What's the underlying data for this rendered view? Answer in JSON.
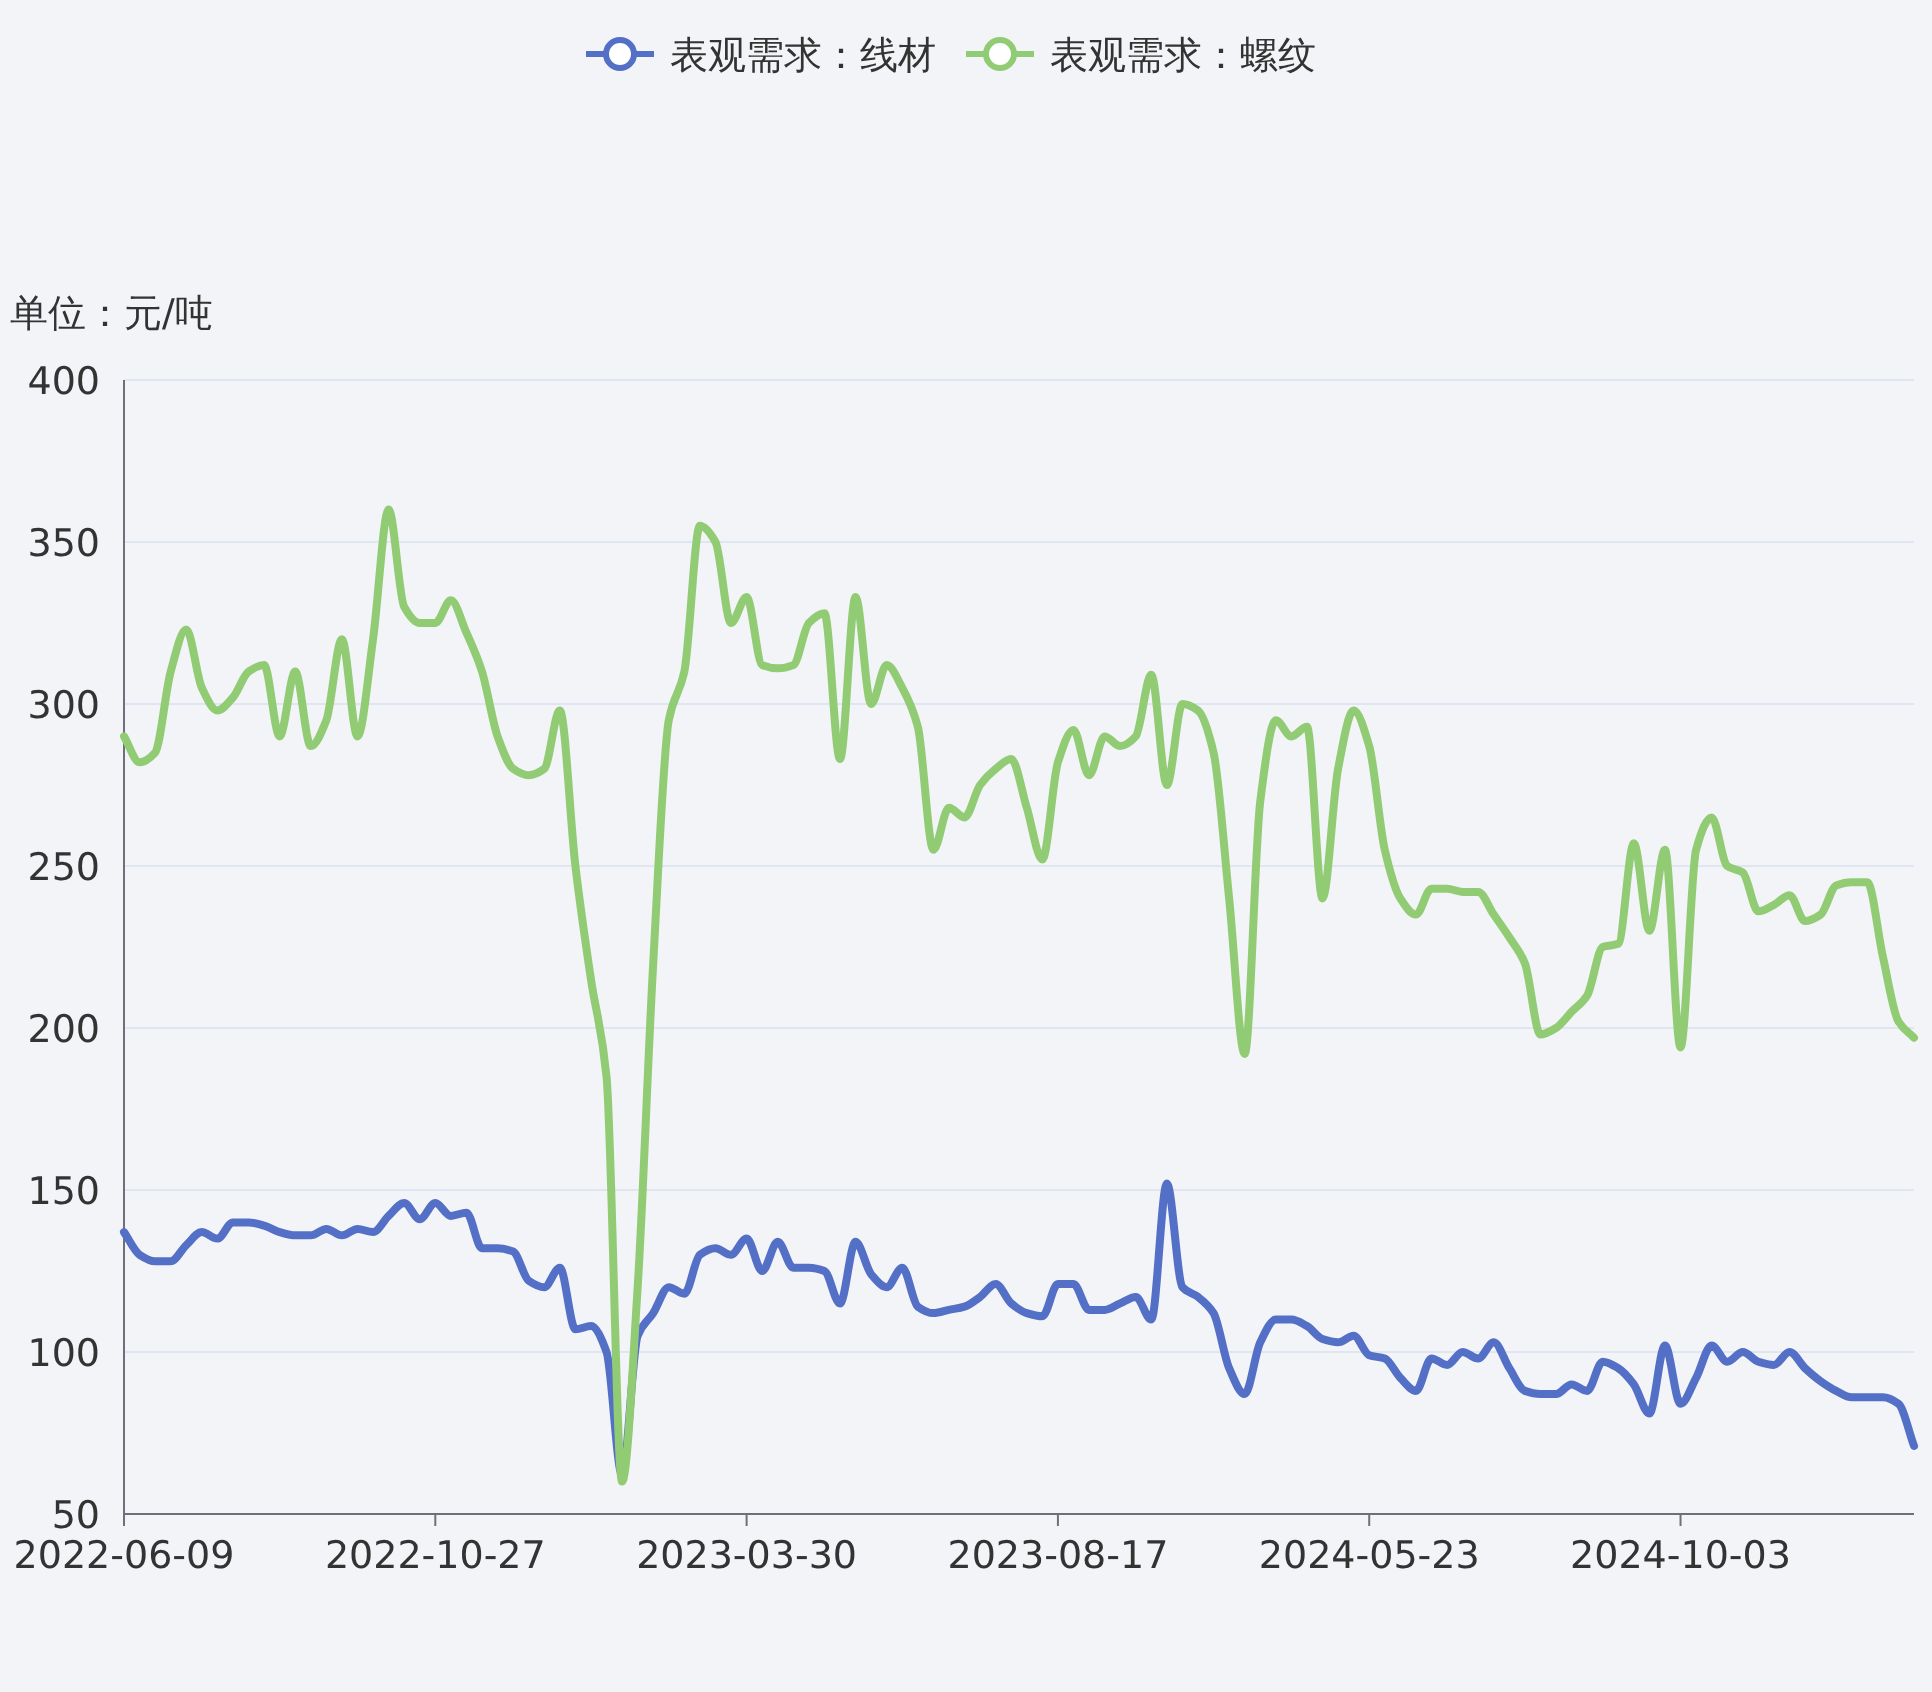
{
  "chart_data": {
    "type": "line",
    "ylabel": "单位：元/吨",
    "categories": [
      "2022-06-09",
      null,
      null,
      null,
      null,
      null,
      null,
      null,
      null,
      null,
      null,
      null,
      null,
      null,
      null,
      null,
      null,
      null,
      null,
      null,
      "2022-10-27",
      null,
      null,
      null,
      null,
      null,
      null,
      null,
      null,
      null,
      null,
      null,
      null,
      null,
      null,
      null,
      null,
      null,
      null,
      null,
      "2023-03-30",
      null,
      null,
      null,
      null,
      null,
      null,
      null,
      null,
      null,
      null,
      null,
      null,
      null,
      null,
      null,
      null,
      null,
      null,
      null,
      "2023-08-17",
      null,
      null,
      null,
      null,
      null,
      null,
      null,
      null,
      null,
      null,
      null,
      null,
      null,
      null,
      null,
      null,
      null,
      null,
      null,
      "2024-05-23",
      null,
      null,
      null,
      null,
      null,
      null,
      null,
      null,
      null,
      null,
      null,
      null,
      null,
      null,
      null,
      null,
      null,
      null,
      null,
      "2024-10-03",
      null,
      null,
      null,
      null,
      null,
      null,
      null,
      null,
      null,
      null,
      null,
      null,
      null,
      null,
      null
    ],
    "series": [
      {
        "name": "表观需求：线材",
        "color": "#5470c6",
        "values": [
          137,
          130,
          128,
          128,
          133,
          137,
          135,
          140,
          140,
          139,
          137,
          136,
          136,
          138,
          136,
          138,
          137,
          142,
          146,
          141,
          146,
          142,
          143,
          132,
          132,
          131,
          122,
          120,
          126,
          107,
          108,
          100,
          62,
          105,
          112,
          120,
          118,
          130,
          132,
          130,
          135,
          125,
          134,
          126,
          126,
          125,
          115,
          134,
          124,
          120,
          126,
          114,
          112,
          113,
          114,
          117,
          121,
          115,
          112,
          111,
          121,
          121,
          113,
          113,
          115,
          117,
          110,
          152,
          120,
          117,
          112,
          95,
          87,
          103,
          110,
          110,
          108,
          104,
          103,
          105,
          99,
          98,
          92,
          88,
          98,
          96,
          100,
          98,
          103,
          95,
          88,
          87,
          87,
          90,
          88,
          97,
          95,
          90,
          81,
          102,
          84,
          92,
          102,
          97,
          100,
          97,
          96,
          100,
          95,
          91,
          88,
          86,
          86,
          86,
          84,
          71
        ]
      },
      {
        "name": "表观需求：螺纹",
        "color": "#91cc75",
        "values": [
          290,
          282,
          285,
          310,
          323,
          305,
          298,
          302,
          310,
          312,
          290,
          310,
          287,
          295,
          320,
          290,
          320,
          360,
          330,
          325,
          325,
          332,
          322,
          310,
          290,
          280,
          278,
          280,
          298,
          250,
          215,
          185,
          60,
          120,
          220,
          295,
          310,
          355,
          350,
          325,
          333,
          312,
          311,
          312,
          325,
          328,
          283,
          333,
          300,
          312,
          305,
          293,
          255,
          268,
          265,
          275,
          280,
          283,
          268,
          252,
          282,
          292,
          278,
          290,
          287,
          290,
          309,
          275,
          300,
          298,
          285,
          240,
          192,
          270,
          295,
          290,
          293,
          240,
          280,
          298,
          287,
          255,
          240,
          235,
          243,
          243,
          242,
          242,
          235,
          228,
          220,
          198,
          200,
          205,
          210,
          225,
          226,
          257,
          230,
          255,
          194,
          255,
          265,
          250,
          248,
          236,
          238,
          241,
          233,
          235,
          244,
          245,
          245,
          222,
          202,
          197
        ]
      }
    ],
    "ylim": [
      50,
      400
    ],
    "yticks": [
      50,
      100,
      150,
      200,
      250,
      300,
      350,
      400
    ],
    "grid": "y",
    "legend": "top",
    "marker": "none",
    "line_style": "solid"
  }
}
